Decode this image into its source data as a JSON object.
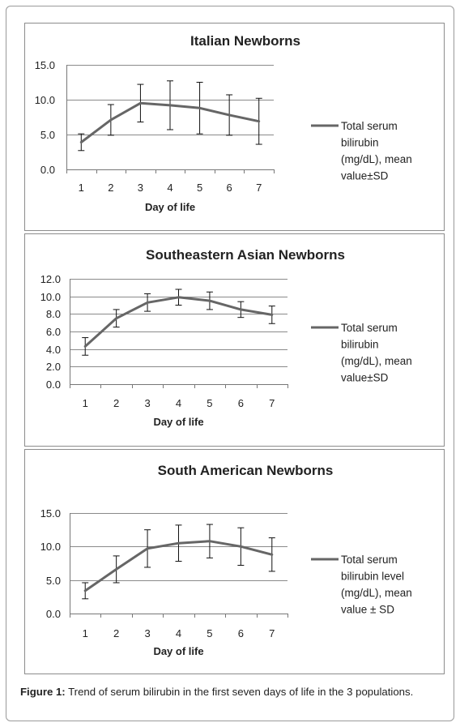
{
  "chart_data": [
    {
      "type": "line",
      "title": "Italian Newborns",
      "xlabel": "Day of life",
      "ylabel": "",
      "categories": [
        "1",
        "2",
        "3",
        "4",
        "5",
        "6",
        "7"
      ],
      "ylim": [
        0,
        15
      ],
      "yticks": [
        "0.0",
        "5.0",
        "10.0",
        "15.0"
      ],
      "grid": true,
      "legend_position": "right",
      "series": [
        {
          "name": "Total serum bilirubin (mg/dL), mean value±SD",
          "legend_lines": [
            "Total serum",
            "bilirubin",
            "(mg/dL), mean",
            "value±SD"
          ],
          "values": [
            3.9,
            7.1,
            9.5,
            9.2,
            8.8,
            7.8,
            6.9
          ],
          "sd": [
            1.2,
            2.2,
            2.7,
            3.5,
            3.7,
            2.9,
            3.3
          ],
          "color": "#666666"
        }
      ]
    },
    {
      "type": "line",
      "title": "Southeastern Asian Newborns",
      "xlabel": "Day of life",
      "ylabel": "",
      "categories": [
        "1",
        "2",
        "3",
        "4",
        "5",
        "6",
        "7"
      ],
      "ylim": [
        0,
        12
      ],
      "yticks": [
        "0.0",
        "2.0",
        "4.0",
        "6.0",
        "8.0",
        "10.0",
        "12.0"
      ],
      "grid": true,
      "legend_position": "right",
      "series": [
        {
          "name": "Total serum bilirubin (mg/dL), mean value±SD",
          "legend_lines": [
            "Total serum",
            "bilirubin",
            "(mg/dL), mean",
            "value±SD"
          ],
          "values": [
            4.3,
            7.5,
            9.3,
            9.9,
            9.5,
            8.5,
            7.9
          ],
          "sd": [
            1.0,
            1.0,
            1.0,
            0.9,
            1.0,
            0.9,
            1.0
          ],
          "color": "#666666"
        }
      ]
    },
    {
      "type": "line",
      "title": "South American Newborns",
      "xlabel": "Day of life",
      "ylabel": "",
      "categories": [
        "1",
        "2",
        "3",
        "4",
        "5",
        "6",
        "7"
      ],
      "ylim": [
        0,
        15
      ],
      "yticks": [
        "0.0",
        "5.0",
        "10.0",
        "15.0"
      ],
      "grid": true,
      "legend_position": "right",
      "series": [
        {
          "name": "Total serum bilirubin level (mg/dL), mean value ± SD",
          "legend_lines": [
            "Total serum",
            "bilirubin level",
            "(mg/dL), mean",
            "value ± SD"
          ],
          "values": [
            3.4,
            6.6,
            9.7,
            10.5,
            10.8,
            10.0,
            8.8
          ],
          "sd": [
            1.2,
            2.0,
            2.8,
            2.7,
            2.5,
            2.8,
            2.5
          ],
          "color": "#666666"
        }
      ]
    }
  ],
  "caption": {
    "label": "Figure 1:",
    "text": " Trend of serum bilirubin in the first seven days of life in the 3 populations."
  }
}
